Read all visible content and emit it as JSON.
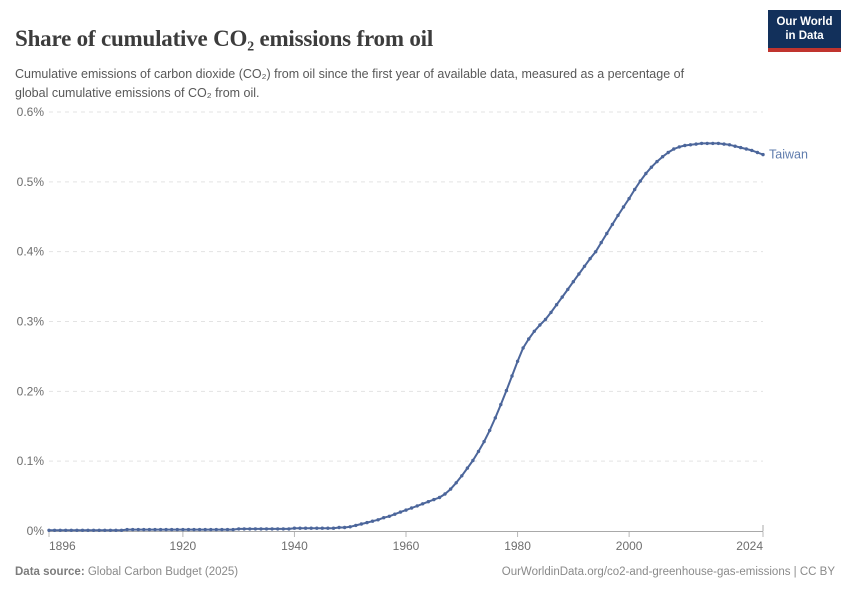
{
  "header": {
    "title": "Share of cumulative CO₂ emissions from oil",
    "subtitle": "Cumulative emissions of carbon dioxide (CO₂) from oil since the first year of available data, measured as a percentage of global cumulative emissions of CO₂ from oil.",
    "logo": {
      "line1": "Our World",
      "line2": "in Data",
      "bg_color": "#12305b",
      "accent_color": "#c0342e"
    }
  },
  "chart_data": {
    "type": "line",
    "title": "Share of cumulative CO₂ emissions from oil",
    "xlabel": "",
    "ylabel": "",
    "unit": "%",
    "grid": true,
    "legend_position": "end-of-line",
    "xlim": [
      1896,
      2024
    ],
    "ylim": [
      0,
      0.6
    ],
    "x_ticks": [
      1896,
      1920,
      1940,
      1960,
      1980,
      2000,
      2024
    ],
    "y_ticks": [
      "0%",
      "0.1%",
      "0.2%",
      "0.3%",
      "0.4%",
      "0.5%",
      "0.6%"
    ],
    "axis_color": "#a9a9a9",
    "grid_color": "#e3e3e3",
    "tick_label_color": "#6e6e6e",
    "series": [
      {
        "name": "Taiwan",
        "color": "#4c669b",
        "label_color": "#5f7cad",
        "x_start": 1896,
        "x_step": 1,
        "values": [
          0.001,
          0.001,
          0.001,
          0.001,
          0.001,
          0.001,
          0.001,
          0.001,
          0.001,
          0.001,
          0.001,
          0.001,
          0.001,
          0.001,
          0.002,
          0.002,
          0.002,
          0.002,
          0.002,
          0.002,
          0.002,
          0.002,
          0.002,
          0.002,
          0.002,
          0.002,
          0.002,
          0.002,
          0.002,
          0.002,
          0.002,
          0.002,
          0.002,
          0.002,
          0.003,
          0.003,
          0.003,
          0.003,
          0.003,
          0.003,
          0.003,
          0.003,
          0.003,
          0.003,
          0.004,
          0.004,
          0.004,
          0.004,
          0.004,
          0.004,
          0.004,
          0.004,
          0.005,
          0.005,
          0.006,
          0.008,
          0.01,
          0.012,
          0.014,
          0.016,
          0.019,
          0.021,
          0.024,
          0.027,
          0.03,
          0.033,
          0.036,
          0.039,
          0.042,
          0.045,
          0.048,
          0.053,
          0.06,
          0.069,
          0.079,
          0.09,
          0.101,
          0.114,
          0.128,
          0.144,
          0.162,
          0.181,
          0.201,
          0.222,
          0.243,
          0.262,
          0.275,
          0.286,
          0.295,
          0.303,
          0.313,
          0.324,
          0.335,
          0.346,
          0.357,
          0.368,
          0.379,
          0.39,
          0.4,
          0.413,
          0.426,
          0.439,
          0.452,
          0.464,
          0.476,
          0.489,
          0.501,
          0.512,
          0.521,
          0.529,
          0.536,
          0.542,
          0.547,
          0.55,
          0.552,
          0.553,
          0.554,
          0.555,
          0.555,
          0.555,
          0.555,
          0.554,
          0.553,
          0.551,
          0.549,
          0.547,
          0.545,
          0.542,
          0.539
        ]
      }
    ]
  },
  "footer": {
    "datasource_label": "Data source:",
    "datasource_value": " Global Carbon Budget (2025)",
    "credit": "OurWorldinData.org/co2-and-greenhouse-gas-emissions | CC BY"
  }
}
